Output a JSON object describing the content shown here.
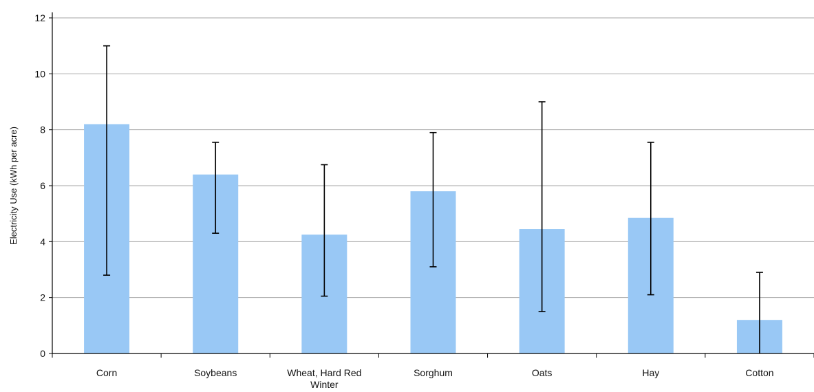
{
  "chart_data": {
    "type": "bar",
    "title": "",
    "xlabel": "",
    "ylabel": "Electricity Use (kWh per acre)",
    "ylim": [
      0,
      12
    ],
    "yticks": [
      0,
      2,
      4,
      6,
      8,
      10,
      12
    ],
    "grid": true,
    "legend": "none",
    "categories": [
      "Corn",
      "Soybeans",
      "Wheat, Hard Red Winter",
      "Sorghum",
      "Oats",
      "Hay",
      "Cotton"
    ],
    "category_lines": [
      [
        "Corn"
      ],
      [
        "Soybeans"
      ],
      [
        "Wheat, Hard Red",
        "Winter"
      ],
      [
        "Sorghum"
      ],
      [
        "Oats"
      ],
      [
        "Hay"
      ],
      [
        "Cotton"
      ]
    ],
    "values": [
      8.2,
      6.4,
      4.25,
      5.8,
      4.45,
      4.85,
      1.2
    ],
    "error_low": [
      2.8,
      4.3,
      2.05,
      3.1,
      1.5,
      2.1,
      0
    ],
    "error_high": [
      11.0,
      7.55,
      6.75,
      7.9,
      9.0,
      7.55,
      2.9
    ],
    "colors": {
      "bar": "#99c8f5",
      "error_bar": "#000000",
      "grid": "#a6a6a6",
      "axis": "#000000"
    }
  }
}
